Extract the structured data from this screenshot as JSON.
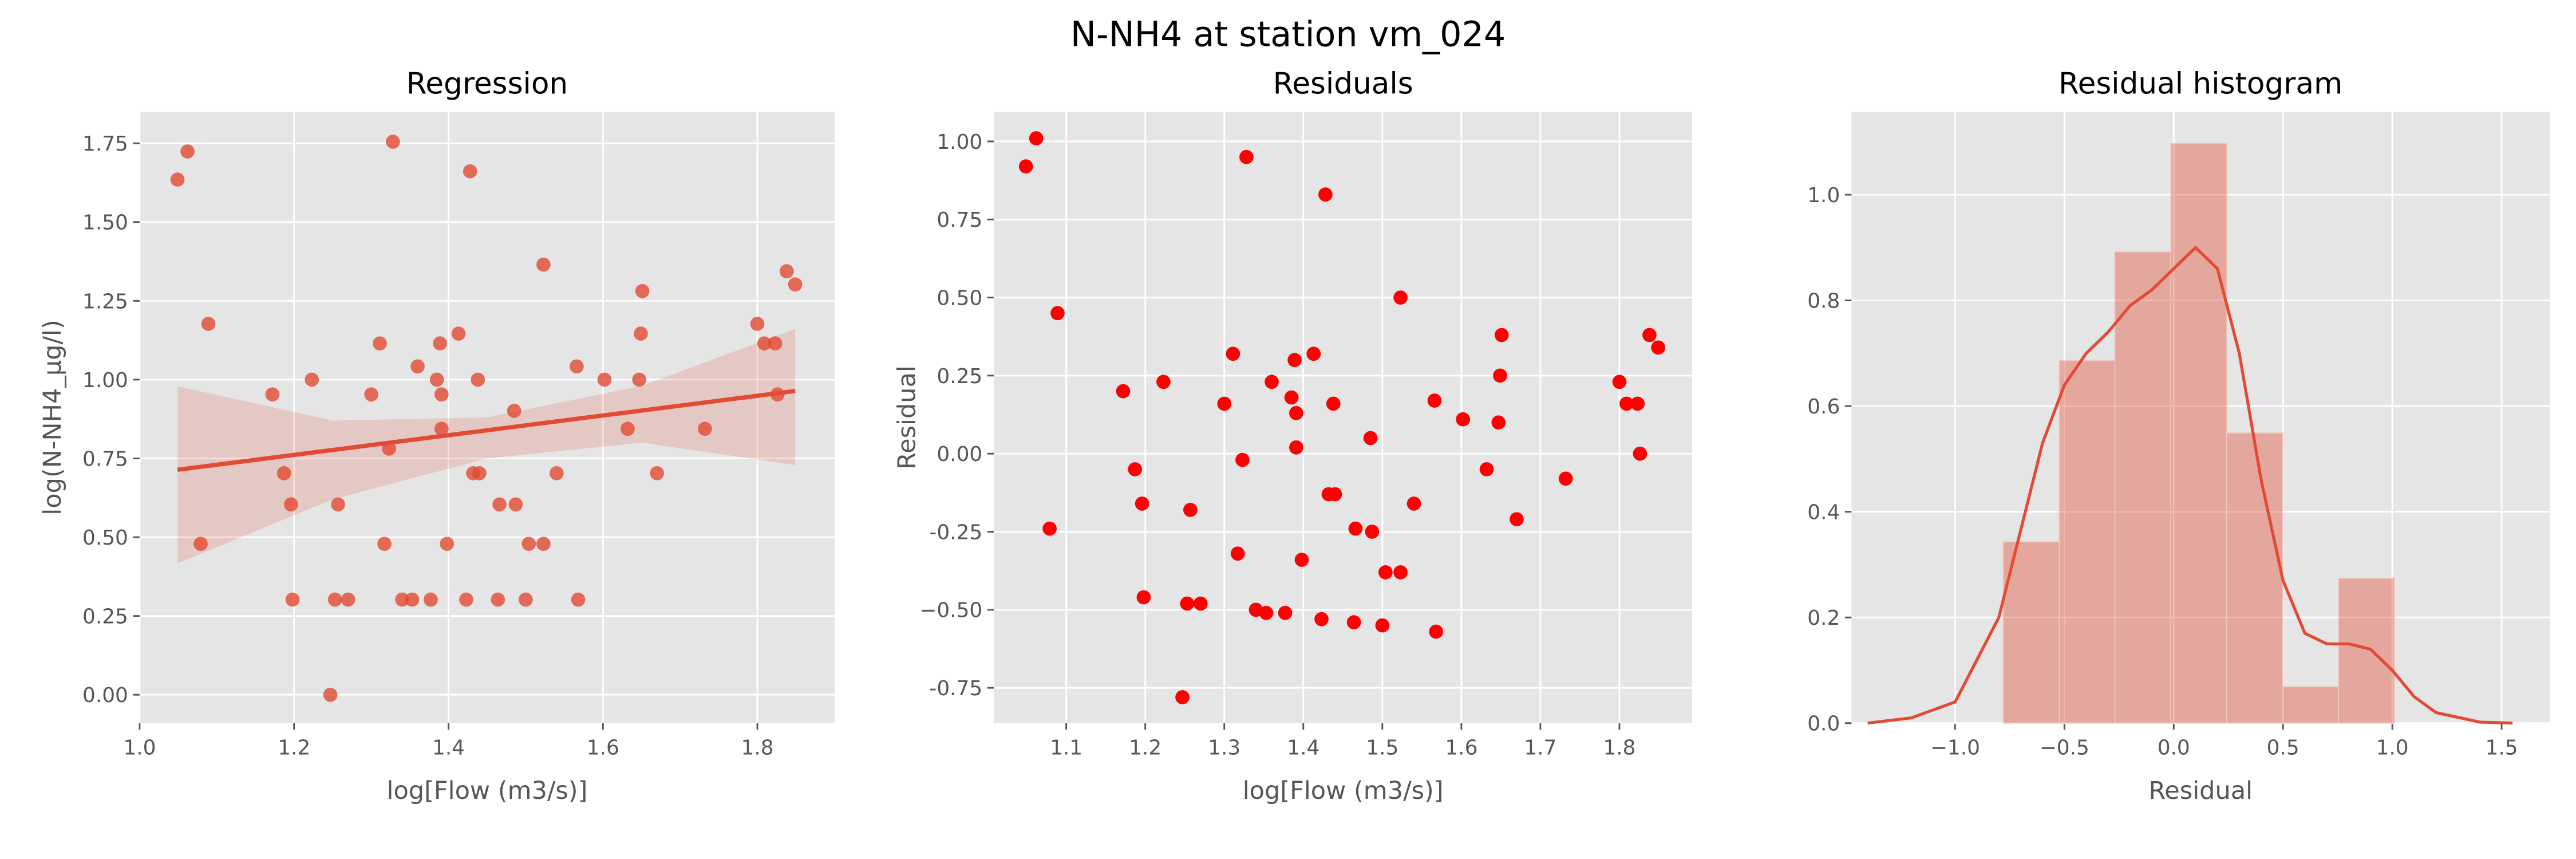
{
  "title": "N-NH4 at station vm_024",
  "chart_data": [
    {
      "type": "scatter",
      "title": "Regression",
      "x_label": "log[Flow (m3/s)]",
      "y_label": "log(N-NH4_µg/l)",
      "xlim": [
        1.0,
        1.9
      ],
      "ylim": [
        -0.09,
        1.85
      ],
      "xticks": [
        {
          "value": 1.0,
          "label": "1.0"
        },
        1.2,
        1.4,
        1.6,
        1.8
      ],
      "yticks": [
        {
          "value": 0,
          "label": "0.00"
        },
        0.25,
        {
          "value": 0.5,
          "label": "0.50"
        },
        0.75,
        {
          "value": 1.0,
          "label": "1.00"
        },
        1.25,
        {
          "value": 1.5,
          "label": "1.50"
        },
        1.75
      ],
      "grid": true,
      "points": {
        "color": "#e24a33",
        "x": [
          1.049,
          1.062,
          1.079,
          1.089,
          1.172,
          1.187,
          1.196,
          1.198,
          1.223,
          1.247,
          1.253,
          1.257,
          1.27,
          1.3,
          1.311,
          1.317,
          1.323,
          1.328,
          1.34,
          1.353,
          1.36,
          1.377,
          1.385,
          1.389,
          1.391,
          1.391,
          1.398,
          1.413,
          1.423,
          1.428,
          1.432,
          1.438,
          1.44,
          1.464,
          1.466,
          1.485,
          1.487,
          1.5,
          1.504,
          1.523,
          1.523,
          1.54,
          1.566,
          1.568,
          1.602,
          1.632,
          1.647,
          1.649,
          1.651,
          1.67,
          1.732,
          1.8,
          1.809,
          1.823,
          1.826,
          1.838,
          1.849
        ],
        "values": [
          1.635,
          1.724,
          0.479,
          1.177,
          0.953,
          0.703,
          0.604,
          0.302,
          1.0,
          0.0,
          0.302,
          0.604,
          0.302,
          0.953,
          1.115,
          0.479,
          0.781,
          1.755,
          0.302,
          0.302,
          1.042,
          0.302,
          1.0,
          1.115,
          0.953,
          0.844,
          0.479,
          1.146,
          0.302,
          1.661,
          0.703,
          1.0,
          0.703,
          0.302,
          0.604,
          0.901,
          0.604,
          0.302,
          0.479,
          1.365,
          0.479,
          0.703,
          1.042,
          0.302,
          1.0,
          0.844,
          1.0,
          1.146,
          1.281,
          0.703,
          0.844,
          1.177,
          1.115,
          1.115,
          0.953,
          1.344,
          1.302
        ]
      },
      "fit": {
        "color": "#e24a33",
        "x": [
          1.049,
          1.849
        ],
        "values": [
          0.714,
          0.964
        ]
      },
      "band": {
        "color": "#e24a33",
        "x": [
          1.049,
          1.25,
          1.45,
          1.65,
          1.849
        ],
        "lower": [
          0.417,
          0.62,
          0.75,
          0.8,
          0.729
        ],
        "upper": [
          0.979,
          0.87,
          0.88,
          0.98,
          1.161
        ]
      }
    },
    {
      "type": "scatter",
      "title": "Residuals",
      "x_label": "log[Flow (m3/s)]",
      "y_label": "Residual",
      "xlim": [
        1.0085,
        1.892
      ],
      "ylim": [
        -0.863,
        1.095
      ],
      "xticks": [
        1.1,
        1.2,
        1.3,
        1.4,
        1.5,
        1.6,
        1.7,
        1.8
      ],
      "yticks": [
        -0.75,
        {
          "value": -0.5,
          "label": "−0.50"
        },
        -0.25,
        {
          "value": 0,
          "label": "0.00"
        },
        0.25,
        {
          "value": 0.5,
          "label": "0.50"
        },
        0.75,
        {
          "value": 1.0,
          "label": "1.00"
        }
      ],
      "grid": true,
      "points": {
        "color": "#ff0000",
        "x": [
          1.049,
          1.062,
          1.079,
          1.089,
          1.172,
          1.187,
          1.196,
          1.198,
          1.223,
          1.247,
          1.253,
          1.257,
          1.27,
          1.3,
          1.311,
          1.317,
          1.323,
          1.328,
          1.34,
          1.353,
          1.36,
          1.377,
          1.385,
          1.389,
          1.391,
          1.391,
          1.398,
          1.413,
          1.423,
          1.428,
          1.432,
          1.438,
          1.44,
          1.464,
          1.466,
          1.485,
          1.487,
          1.5,
          1.504,
          1.523,
          1.523,
          1.54,
          1.566,
          1.568,
          1.602,
          1.632,
          1.647,
          1.649,
          1.651,
          1.67,
          1.732,
          1.8,
          1.809,
          1.823,
          1.826,
          1.838,
          1.849
        ],
        "values": [
          0.92,
          1.01,
          -0.24,
          0.45,
          0.2,
          -0.05,
          -0.16,
          -0.46,
          0.23,
          -0.78,
          -0.48,
          -0.18,
          -0.48,
          0.16,
          0.32,
          -0.32,
          -0.02,
          0.95,
          -0.5,
          -0.51,
          0.23,
          -0.51,
          0.18,
          0.3,
          0.13,
          0.02,
          -0.34,
          0.32,
          -0.53,
          0.83,
          -0.13,
          0.16,
          -0.13,
          -0.54,
          -0.24,
          0.05,
          -0.25,
          -0.55,
          -0.38,
          0.5,
          -0.38,
          -0.16,
          0.17,
          -0.57,
          0.11,
          -0.05,
          0.1,
          0.25,
          0.38,
          -0.21,
          -0.08,
          0.23,
          0.16,
          0.16,
          0.0,
          0.38,
          0.34
        ]
      }
    },
    {
      "type": "histogram",
      "title": "Residual histogram",
      "x_label": "Residual",
      "xlim": [
        -1.474,
        1.72
      ],
      "ylim": [
        0,
        1.157
      ],
      "xticks": [
        {
          "value": -1.0,
          "label": "−1.0"
        },
        {
          "value": -0.5,
          "label": "−0.5"
        },
        {
          "value": 0,
          "label": "0.0"
        },
        0.5,
        {
          "value": 1.0,
          "label": "1.0"
        },
        1.5
      ],
      "yticks": [
        {
          "value": 0,
          "label": "0.0"
        },
        0.2,
        0.4,
        0.6,
        0.8,
        {
          "value": 1.0,
          "label": "1.0"
        }
      ],
      "grid": true,
      "color": "#e24a33",
      "bins": [
        -0.78,
        -0.524,
        -0.269,
        -0.013,
        0.243,
        0.499,
        0.754,
        1.01
      ],
      "values": [
        0.343,
        0.686,
        0.892,
        1.097,
        0.549,
        0.069,
        0.274
      ],
      "kde": {
        "color": "#e24a33",
        "x": [
          -1.4,
          -1.2,
          -1.0,
          -0.8,
          -0.6,
          -0.5,
          -0.4,
          -0.3,
          -0.2,
          -0.1,
          0.0,
          0.1,
          0.2,
          0.3,
          0.4,
          0.5,
          0.6,
          0.7,
          0.8,
          0.9,
          1.0,
          1.1,
          1.2,
          1.4,
          1.55
        ],
        "values": [
          0.0,
          0.01,
          0.04,
          0.2,
          0.53,
          0.64,
          0.7,
          0.74,
          0.79,
          0.82,
          0.86,
          0.9,
          0.86,
          0.7,
          0.46,
          0.27,
          0.17,
          0.15,
          0.15,
          0.14,
          0.1,
          0.05,
          0.02,
          0.002,
          0.0
        ]
      }
    }
  ]
}
